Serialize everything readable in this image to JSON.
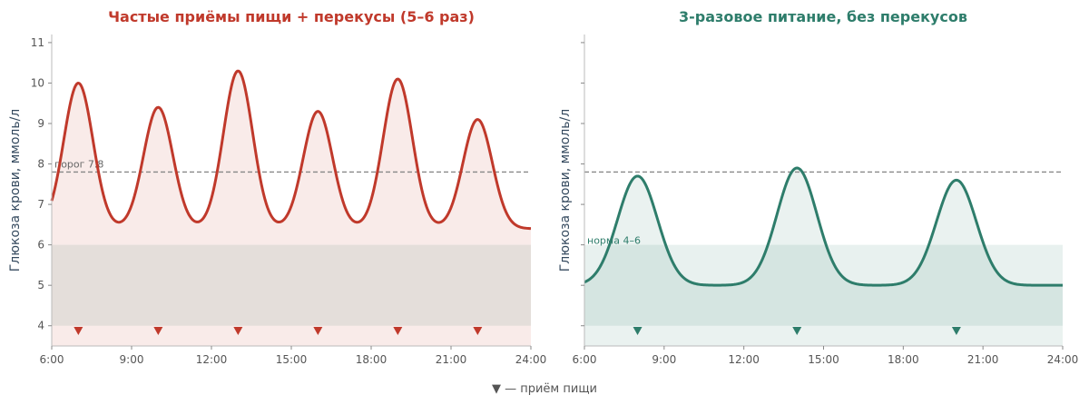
{
  "footer_note": "▼ — приём пищи",
  "chart_data": [
    {
      "type": "line",
      "title": "Частые приёмы пищи + перекусы (5–6 раз)",
      "ylabel": "Глюкоза крови, ммоль/л",
      "xlabel": "",
      "xlim": [
        6,
        24
      ],
      "ylim": [
        3.5,
        11.2
      ],
      "x_ticks": [
        6,
        9,
        12,
        15,
        18,
        21,
        24
      ],
      "x_tick_labels": [
        "6:00",
        "9:00",
        "12:00",
        "15:00",
        "18:00",
        "21:00",
        "24:00"
      ],
      "y_ticks": [
        4,
        5,
        6,
        7,
        8,
        9,
        10,
        11
      ],
      "y_tick_labels": [
        "4",
        "5",
        "6",
        "7",
        "8",
        "9",
        "10",
        "11"
      ],
      "show_y_tick_labels": true,
      "grid": false,
      "color": "#c0392b",
      "fill_color": "#c0392b",
      "baseline": 6.4,
      "peak_width_h": 0.55,
      "peaks": [
        {
          "x": 7,
          "y": 10.0
        },
        {
          "x": 10,
          "y": 9.4
        },
        {
          "x": 13,
          "y": 10.3
        },
        {
          "x": 16,
          "y": 9.3
        },
        {
          "x": 19,
          "y": 10.1
        },
        {
          "x": 22,
          "y": 9.1
        }
      ],
      "start_value": 6.85,
      "meals": [
        7,
        10,
        13,
        16,
        19,
        22
      ],
      "threshold": {
        "y": 7.8,
        "label": "порог 7.8"
      },
      "normal_band": {
        "y": [
          4,
          6
        ],
        "color": "#2e7d6b",
        "label": ""
      }
    },
    {
      "type": "line",
      "title": "3-разовое питание, без перекусов",
      "ylabel": "Глюкоза крови, ммоль/л",
      "xlabel": "",
      "xlim": [
        6,
        24
      ],
      "ylim": [
        3.5,
        11.2
      ],
      "x_ticks": [
        6,
        9,
        12,
        15,
        18,
        21,
        24
      ],
      "x_tick_labels": [
        "6:00",
        "9:00",
        "12:00",
        "15:00",
        "18:00",
        "21:00",
        "24:00"
      ],
      "y_ticks": [
        4,
        5,
        6,
        7,
        8,
        9,
        10,
        11
      ],
      "y_tick_labels": [],
      "show_y_tick_labels": false,
      "grid": false,
      "color": "#2e7d6b",
      "fill_color": "#2e7d6b",
      "baseline": 5.0,
      "peak_width_h": 0.75,
      "peaks": [
        {
          "x": 8,
          "y": 7.7
        },
        {
          "x": 14,
          "y": 7.9
        },
        {
          "x": 20,
          "y": 7.6
        }
      ],
      "start_value": 5.05,
      "meals": [
        8,
        14,
        20
      ],
      "threshold": {
        "y": 7.8,
        "label": ""
      },
      "normal_band": {
        "y": [
          4,
          6
        ],
        "color": "#2e7d6b",
        "label": "норма 4–6"
      }
    }
  ]
}
